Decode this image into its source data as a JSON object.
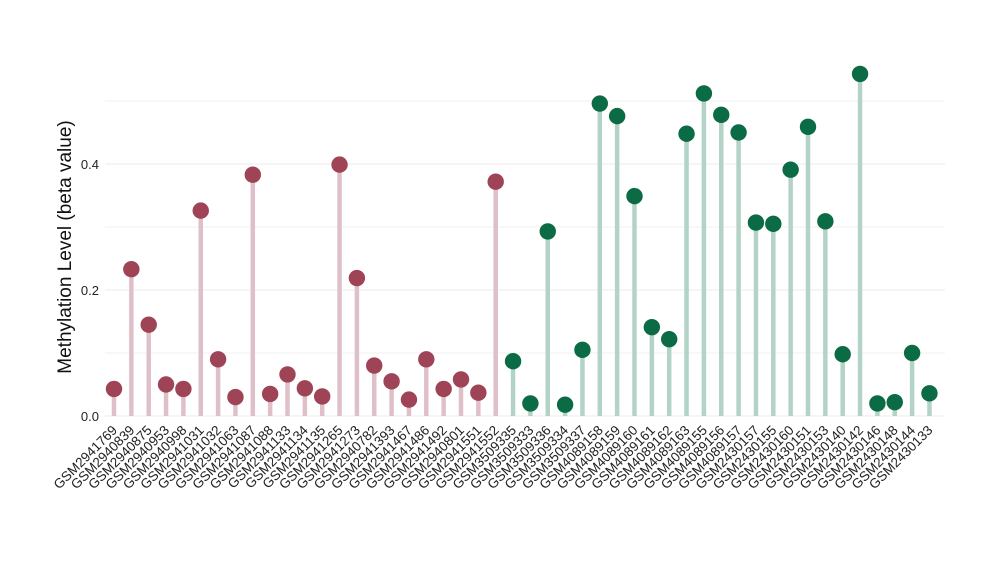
{
  "chart_data": {
    "type": "lollipop",
    "title": "",
    "xlabel": "",
    "ylabel": "Methylation Level (beta value)",
    "ylim": [
      0,
      0.55
    ],
    "yticks": [
      0.0,
      0.2,
      0.4
    ],
    "ytick_labels": [
      "0.0",
      "0.2",
      "0.4"
    ],
    "grid": "horizontal",
    "colors": {
      "group1_point": "#9e4456",
      "group1_stem": "#dfc0c8",
      "group2_point": "#0b6b45",
      "group2_stem": "#b3d3c6",
      "grid": "#ebebeb"
    },
    "series": [
      {
        "categories": [
          "GSM2941769",
          "GSM2940839",
          "GSM2940875",
          "GSM2940953",
          "GSM2940998",
          "GSM2941031",
          "GSM2941032",
          "GSM2941063",
          "GSM2941087",
          "GSM2941088",
          "GSM2941133",
          "GSM2941134",
          "GSM2941135",
          "GSM2941265",
          "GSM2941273",
          "GSM2940782",
          "GSM2941393",
          "GSM2941467",
          "GSM2941486",
          "GSM2941492",
          "GSM2940801",
          "GSM2941551",
          "GSM2941552"
        ],
        "values": [
          0.043,
          0.233,
          0.145,
          0.05,
          0.043,
          0.326,
          0.09,
          0.03,
          0.383,
          0.035,
          0.066,
          0.044,
          0.031,
          0.399,
          0.219,
          0.08,
          0.055,
          0.026,
          0.09,
          0.043,
          0.058,
          0.037,
          0.372
        ]
      },
      {
        "categories": [
          "GSM3509335",
          "GSM3509333",
          "GSM3509336",
          "GSM3509334",
          "GSM3509337",
          "GSM4089158",
          "GSM4089159",
          "GSM4089160",
          "GSM4089161",
          "GSM4089162",
          "GSM4089163",
          "GSM4089155",
          "GSM4089156",
          "GSM4089157",
          "GSM2430157",
          "GSM2430155",
          "GSM2430160",
          "GSM2430151",
          "GSM2430153",
          "GSM2430140",
          "GSM2430142",
          "GSM2430146",
          "GSM2430148",
          "GSM2430144",
          "GSM2430133"
        ],
        "values": [
          0.087,
          0.02,
          0.293,
          0.018,
          0.105,
          0.496,
          0.476,
          0.349,
          0.141,
          0.122,
          0.448,
          0.512,
          0.478,
          0.45,
          0.307,
          0.305,
          0.391,
          0.459,
          0.309,
          0.098,
          0.543,
          0.02,
          0.022,
          0.1,
          0.036
        ]
      }
    ]
  }
}
